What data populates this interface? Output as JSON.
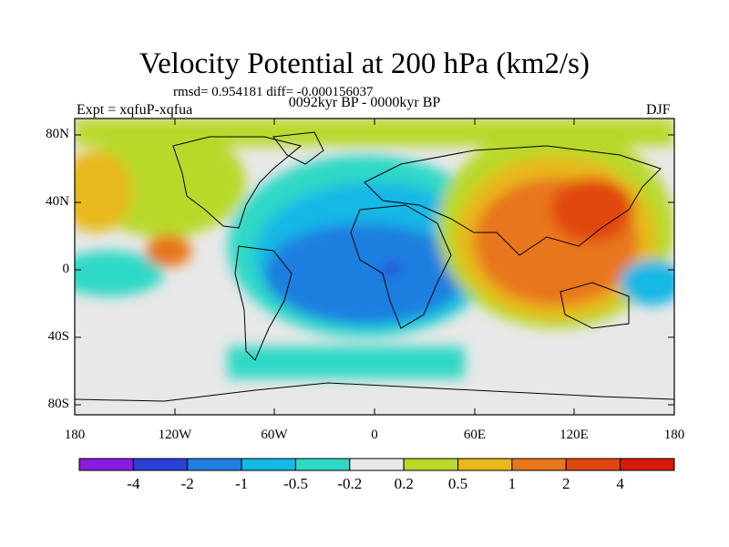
{
  "title": "Velocity Potential at 200 hPa (km2/s)",
  "stats": "rmsd= 0.954181 diff= -0.000156037",
  "experiment": "Expt = xqfuP-xqfua",
  "period": "0092kyr BP - 0000kyr BP",
  "season": "DJF",
  "lat_axis": [
    "80N",
    "40N",
    "0",
    "40S",
    "80S"
  ],
  "lon_axis": [
    "180",
    "120W",
    "60W",
    "0",
    "60E",
    "120E",
    "180"
  ],
  "colorbar": {
    "labels": [
      "-4",
      "-2",
      "-1",
      "-0.5",
      "-0.2",
      "0.2",
      "0.5",
      "1",
      "2",
      "4"
    ],
    "colors": [
      "#8a1be0",
      "#2a3fd8",
      "#1f7fe0",
      "#12b8e6",
      "#2ed8c6",
      "#e8e8e8",
      "#b8d92a",
      "#e8b91a",
      "#e8761a",
      "#e0460f",
      "#d81a0a"
    ]
  }
}
